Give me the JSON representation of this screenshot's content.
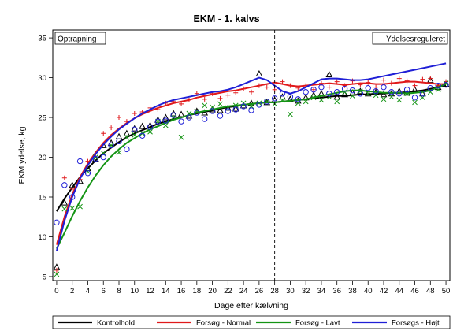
{
  "chart_data": {
    "type": "line",
    "title": "EKM - 1. kalvs",
    "xlabel": "Dage efter kælvning",
    "ylabel": "EKM ydelse, kg",
    "xlim": [
      -0.5,
      50.5
    ],
    "ylim": [
      4.5,
      36
    ],
    "xticks": [
      0,
      2,
      4,
      6,
      8,
      10,
      12,
      14,
      16,
      18,
      20,
      22,
      24,
      26,
      28,
      30,
      32,
      34,
      36,
      38,
      40,
      42,
      44,
      46,
      48,
      50
    ],
    "yticks": [
      5,
      10,
      15,
      20,
      25,
      30,
      35
    ],
    "grid": false,
    "divider_x": 28,
    "annotations": [
      {
        "text": "Optrapning",
        "position": "top-left"
      },
      {
        "text": "Ydelsesreguleret",
        "position": "top-right"
      }
    ],
    "legend": {
      "placement": "bottom"
    },
    "series": [
      {
        "name": "Kontrolhold",
        "color": "#000000",
        "marker": "triangle",
        "x": [
          0,
          1,
          2,
          3,
          4,
          5,
          6,
          7,
          8,
          9,
          10,
          11,
          12,
          13,
          14,
          15,
          16,
          17,
          18,
          19,
          20,
          21,
          22,
          23,
          24,
          25,
          26,
          27,
          28,
          29,
          30,
          31,
          32,
          33,
          34,
          35,
          36,
          37,
          38,
          39,
          40,
          41,
          42,
          43,
          44,
          45,
          46,
          47,
          48,
          49,
          50
        ],
        "points": [
          6.2,
          14.3,
          16.5,
          17.0,
          18.6,
          19.8,
          21.5,
          21.8,
          22.6,
          23.0,
          23.6,
          23.9,
          24.0,
          24.7,
          25.0,
          25.5,
          25.4,
          25.2,
          25.8,
          25.6,
          26.0,
          25.9,
          26.2,
          26.1,
          26.5,
          26.8,
          30.5,
          26.9,
          27.2,
          27.6,
          27.3,
          27.1,
          27.5,
          27.8,
          28.0,
          30.4,
          27.6,
          27.9,
          28.1,
          28.3,
          28.0,
          28.2,
          27.9,
          28.0,
          28.3,
          28.1,
          28.5,
          28.0,
          29.7,
          28.8,
          29.2
        ],
        "fit": [
          13.2,
          14.8,
          16.2,
          17.5,
          18.6,
          19.6,
          20.5,
          21.2,
          21.9,
          22.5,
          23.0,
          23.4,
          23.8,
          24.2,
          24.5,
          24.8,
          25.0,
          25.3,
          25.5,
          25.7,
          25.9,
          26.1,
          26.3,
          26.4,
          26.6,
          26.7,
          26.8,
          26.9,
          26.9,
          27.0,
          27.1,
          27.2,
          27.3,
          27.4,
          27.5,
          27.6,
          27.7,
          27.7,
          27.8,
          27.9,
          27.9,
          28.0,
          28.0,
          28.1,
          28.1,
          28.2,
          28.3,
          28.4,
          28.6,
          28.8,
          29.0
        ]
      },
      {
        "name": "Forsøg - Normal",
        "color": "#e0191b",
        "marker": "plus",
        "x": [
          0,
          1,
          2,
          3,
          4,
          5,
          6,
          7,
          8,
          9,
          10,
          11,
          12,
          13,
          14,
          15,
          16,
          17,
          18,
          19,
          20,
          21,
          22,
          23,
          24,
          25,
          26,
          27,
          28,
          29,
          30,
          31,
          32,
          33,
          34,
          35,
          36,
          37,
          38,
          39,
          40,
          41,
          42,
          43,
          44,
          45,
          46,
          47,
          48,
          49,
          50
        ],
        "points": [
          5.8,
          17.4,
          16.0,
          17.2,
          19.5,
          20.4,
          23.0,
          23.7,
          25.0,
          24.5,
          25.5,
          25.7,
          26.2,
          26.0,
          26.8,
          27.0,
          26.7,
          27.2,
          28.0,
          27.3,
          28.0,
          27.4,
          27.8,
          28.1,
          28.6,
          28.2,
          29.0,
          28.8,
          28.5,
          29.5,
          29.0,
          28.7,
          29.0,
          28.5,
          29.3,
          28.8,
          29.5,
          29.0,
          29.6,
          29.1,
          29.4,
          28.8,
          29.7,
          29.3,
          29.9,
          29.6,
          29.0,
          29.8,
          29.9,
          29.0,
          29.5
        ],
        "fit": [
          9.0,
          12.5,
          15.3,
          17.5,
          19.2,
          20.6,
          21.8,
          22.8,
          23.6,
          24.3,
          24.9,
          25.4,
          25.8,
          26.2,
          26.5,
          26.8,
          27.0,
          27.2,
          27.5,
          27.7,
          27.9,
          28.1,
          28.3,
          28.4,
          28.6,
          28.8,
          29.0,
          29.2,
          29.4,
          29.2,
          29.0,
          28.9,
          29.0,
          29.1,
          29.2,
          29.3,
          29.2,
          29.1,
          29.2,
          29.3,
          29.3,
          29.2,
          29.2,
          29.3,
          29.4,
          29.5,
          29.5,
          29.4,
          29.3,
          29.2,
          29.2
        ]
      },
      {
        "name": "Forsøg - Lavt",
        "color": "#149414",
        "marker": "x",
        "x": [
          0,
          1,
          2,
          3,
          4,
          5,
          6,
          7,
          8,
          9,
          10,
          11,
          12,
          13,
          14,
          15,
          16,
          17,
          18,
          19,
          20,
          21,
          22,
          23,
          24,
          25,
          26,
          27,
          28,
          29,
          30,
          31,
          32,
          33,
          34,
          35,
          36,
          37,
          38,
          39,
          40,
          41,
          42,
          43,
          44,
          45,
          46,
          47,
          48,
          49,
          50
        ],
        "points": [
          5.3,
          13.5,
          13.6,
          13.8,
          18.2,
          20.0,
          20.5,
          21.5,
          20.6,
          22.5,
          22.8,
          23.0,
          23.2,
          24.5,
          24.0,
          25.0,
          22.5,
          25.5,
          25.8,
          26.5,
          26.3,
          26.7,
          26.2,
          26.5,
          26.8,
          26.4,
          26.8,
          27.0,
          26.7,
          27.2,
          25.4,
          26.8,
          27.0,
          27.5,
          27.2,
          27.6,
          27.0,
          28.2,
          27.7,
          28.3,
          28.0,
          27.8,
          27.3,
          27.6,
          27.2,
          28.0,
          26.9,
          27.5,
          28.2,
          28.5,
          29.3
        ],
        "fit": [
          8.5,
          10.5,
          12.6,
          14.5,
          16.2,
          17.7,
          19.0,
          20.1,
          21.0,
          21.8,
          22.4,
          23.0,
          23.5,
          23.9,
          24.3,
          24.7,
          25.0,
          25.3,
          25.6,
          25.8,
          26.0,
          26.2,
          26.4,
          26.5,
          26.6,
          26.7,
          26.8,
          26.9,
          26.9,
          27.0,
          27.1,
          27.2,
          27.3,
          27.5,
          27.7,
          27.9,
          28.1,
          28.3,
          28.4,
          28.4,
          28.3,
          28.2,
          28.1,
          28.1,
          28.1,
          28.0,
          28.1,
          28.2,
          28.4,
          28.8,
          29.2
        ]
      },
      {
        "name": "Forsøgs - Højt",
        "color": "#1f1fd6",
        "marker": "circle",
        "x": [
          0,
          1,
          2,
          3,
          4,
          5,
          6,
          7,
          8,
          9,
          10,
          11,
          12,
          13,
          14,
          15,
          16,
          17,
          18,
          19,
          20,
          21,
          22,
          23,
          24,
          25,
          26,
          27,
          28,
          29,
          30,
          31,
          32,
          33,
          34,
          35,
          36,
          37,
          38,
          39,
          40,
          41,
          42,
          43,
          44,
          45,
          46,
          47,
          48,
          49,
          50
        ],
        "points": [
          11.8,
          16.5,
          15.0,
          19.5,
          18.0,
          19.8,
          20.0,
          21.5,
          22.0,
          21.0,
          23.5,
          22.7,
          23.8,
          24.5,
          24.6,
          25.3,
          24.5,
          25.0,
          25.6,
          24.8,
          25.8,
          25.2,
          25.8,
          26.0,
          26.4,
          25.9,
          26.6,
          27.0,
          27.4,
          28.0,
          27.6,
          27.3,
          28.2,
          28.5,
          28.8,
          28.0,
          28.2,
          28.6,
          28.4,
          28.0,
          28.7,
          28.3,
          28.8,
          28.2,
          28.0,
          28.5,
          27.5,
          28.0,
          28.7,
          29.0,
          29.1
        ],
        "fit": [
          8.2,
          12.0,
          15.0,
          17.3,
          19.0,
          20.4,
          21.6,
          22.6,
          23.5,
          24.2,
          24.9,
          25.5,
          26.0,
          26.5,
          26.9,
          27.2,
          27.4,
          27.6,
          27.8,
          28.0,
          28.2,
          28.3,
          28.5,
          28.8,
          29.2,
          29.6,
          30.0,
          29.7,
          29.0,
          28.3,
          28.0,
          28.3,
          28.8,
          29.3,
          29.8,
          29.9,
          29.9,
          29.8,
          29.7,
          29.7,
          29.8,
          30.0,
          30.2,
          30.4,
          30.6,
          30.8,
          31.0,
          31.2,
          31.4,
          31.6,
          31.8
        ]
      }
    ]
  }
}
